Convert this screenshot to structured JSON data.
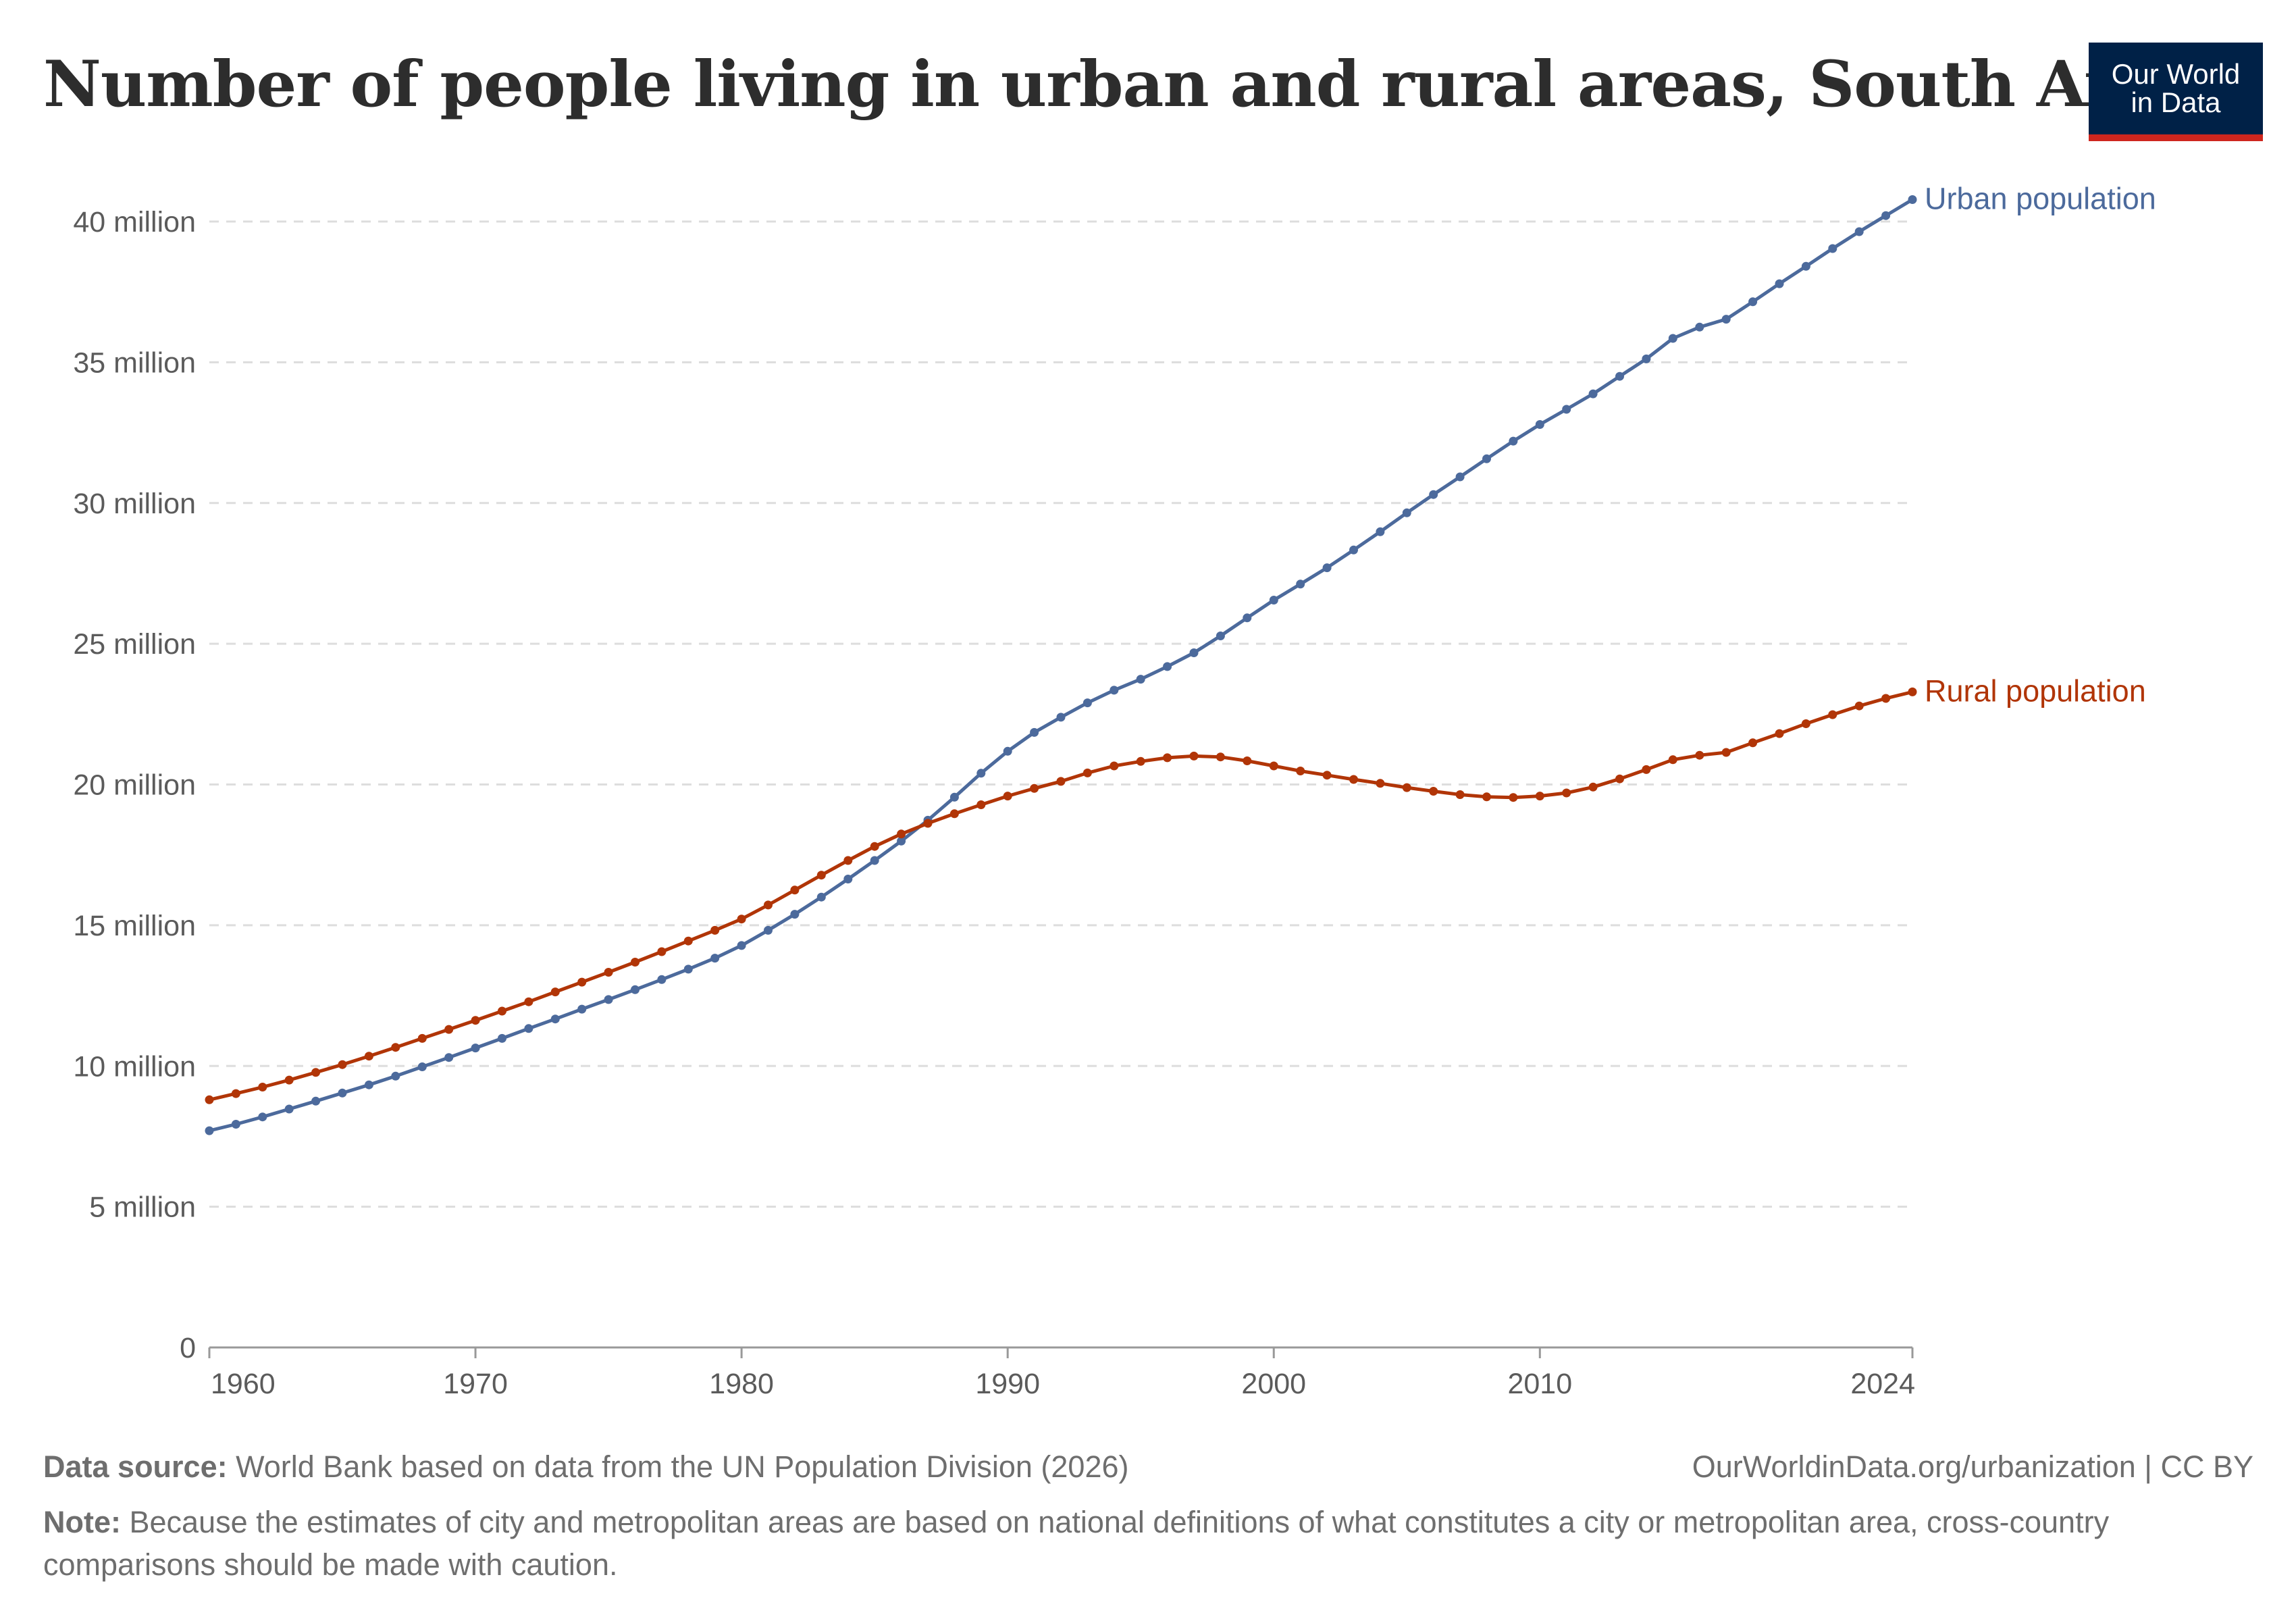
{
  "header": {
    "title": "Number of people living in urban and rural areas, South Africa",
    "logo_line1": "Our World",
    "logo_line2": "in Data"
  },
  "footer": {
    "source_label": "Data source:",
    "source_text": "World Bank based on data from the UN Population Division (2026)",
    "url_text": "OurWorldinData.org/urbanization | CC BY",
    "note_label": "Note:",
    "note_text": "Because the estimates of city and metropolitan areas are based on national definitions of what constitutes a city or metropolitan area, cross-country comparisons should be made with caution."
  },
  "colors": {
    "urban": "#4c6a9c",
    "rural": "#b13507",
    "grid": "#dddddd",
    "axis": "#999999"
  },
  "chart_data": {
    "type": "line",
    "title": "Number of people living in urban and rural areas, South Africa",
    "xlabel": "",
    "ylabel": "",
    "xlim": [
      1960,
      2024
    ],
    "ylim": [
      0,
      40000000
    ],
    "y_ticks": [
      {
        "value": 0,
        "label": "0"
      },
      {
        "value": 5000000,
        "label": "5 million"
      },
      {
        "value": 10000000,
        "label": "10 million"
      },
      {
        "value": 15000000,
        "label": "15 million"
      },
      {
        "value": 20000000,
        "label": "20 million"
      },
      {
        "value": 25000000,
        "label": "25 million"
      },
      {
        "value": 30000000,
        "label": "30 million"
      },
      {
        "value": 35000000,
        "label": "35 million"
      },
      {
        "value": 40000000,
        "label": "40 million"
      }
    ],
    "x_ticks": [
      {
        "value": 1960,
        "label": "1960"
      },
      {
        "value": 1970,
        "label": "1970"
      },
      {
        "value": 1980,
        "label": "1980"
      },
      {
        "value": 1990,
        "label": "1990"
      },
      {
        "value": 2000,
        "label": "2000"
      },
      {
        "value": 2010,
        "label": "2010"
      },
      {
        "value": 2024,
        "label": "2024"
      }
    ],
    "x": [
      1960,
      1961,
      1962,
      1963,
      1964,
      1965,
      1966,
      1967,
      1968,
      1969,
      1970,
      1971,
      1972,
      1973,
      1974,
      1975,
      1976,
      1977,
      1978,
      1979,
      1980,
      1981,
      1982,
      1983,
      1984,
      1985,
      1986,
      1987,
      1988,
      1989,
      1990,
      1991,
      1992,
      1993,
      1994,
      1995,
      1996,
      1997,
      1998,
      1999,
      2000,
      2001,
      2002,
      2003,
      2004,
      2005,
      2006,
      2007,
      2008,
      2009,
      2010,
      2011,
      2012,
      2013,
      2014,
      2015,
      2016,
      2017,
      2018,
      2019,
      2020,
      2021,
      2022,
      2023,
      2024
    ],
    "series": [
      {
        "name": "Urban population",
        "color": "#4c6a9c",
        "values": [
          7700000,
          7930000,
          8190000,
          8470000,
          8750000,
          9040000,
          9330000,
          9640000,
          9970000,
          10300000,
          10640000,
          10980000,
          11330000,
          11670000,
          12020000,
          12360000,
          12710000,
          13070000,
          13440000,
          13830000,
          14280000,
          14820000,
          15390000,
          16000000,
          16640000,
          17300000,
          17990000,
          18730000,
          19550000,
          20400000,
          21180000,
          21850000,
          22390000,
          22900000,
          23350000,
          23740000,
          24190000,
          24680000,
          25280000,
          25920000,
          26550000,
          27120000,
          27700000,
          28330000,
          28980000,
          29650000,
          30300000,
          30930000,
          31570000,
          32200000,
          32790000,
          33330000,
          33880000,
          34500000,
          35120000,
          35850000,
          36250000,
          36530000,
          37150000,
          37790000,
          38410000,
          39040000,
          39640000,
          40210000,
          40780000
        ]
      },
      {
        "name": "Rural population",
        "color": "#b13507",
        "values": [
          8800000,
          9020000,
          9250000,
          9500000,
          9770000,
          10050000,
          10350000,
          10660000,
          10980000,
          11300000,
          11620000,
          11950000,
          12280000,
          12630000,
          12980000,
          13330000,
          13690000,
          14060000,
          14440000,
          14820000,
          15220000,
          15720000,
          16250000,
          16780000,
          17300000,
          17800000,
          18240000,
          18620000,
          18960000,
          19280000,
          19590000,
          19860000,
          20110000,
          20410000,
          20660000,
          20820000,
          20950000,
          21010000,
          20980000,
          20840000,
          20660000,
          20480000,
          20330000,
          20180000,
          20040000,
          19890000,
          19760000,
          19640000,
          19560000,
          19540000,
          19590000,
          19700000,
          19910000,
          20200000,
          20530000,
          20880000,
          21040000,
          21140000,
          21480000,
          21810000,
          22160000,
          22480000,
          22790000,
          23060000,
          23290000
        ]
      }
    ]
  }
}
